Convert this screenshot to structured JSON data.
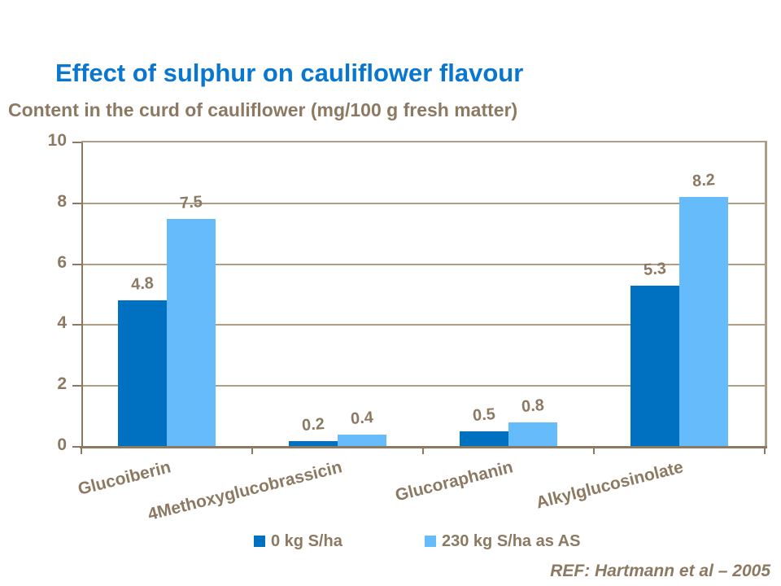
{
  "colors": {
    "title_blue": "#0976CF",
    "text_brown": "#8C7962",
    "grid_tan": "#AE9E86",
    "axis_brown": "#8C7962",
    "series1_dark_blue": "#0070C0",
    "series2_light_blue": "#66BBFA",
    "background": "#FFFFFF"
  },
  "footer": {
    "ref": "REF: Hartmann et al – 2005"
  },
  "chart_data": {
    "type": "bar",
    "title": "Effect of sulphur on cauliflower flavour",
    "subtitle": "Content in the curd of cauliflower (mg/100 g fresh matter)",
    "categories": [
      "Glucoiberin",
      "4Methoxyglucobrassicin",
      "Glucoraphanin",
      "Alkylglucosinolate"
    ],
    "series": [
      {
        "name": "0 kg S/ha",
        "color": "#0070C0",
        "values": [
          4.8,
          0.2,
          0.5,
          5.3
        ]
      },
      {
        "name": "230 kg S/ha as AS",
        "color": "#66BBFA",
        "values": [
          7.5,
          0.4,
          0.8,
          8.2
        ]
      }
    ],
    "value_labels": [
      "4.8",
      "7.5",
      "0.2",
      "0.4",
      "0.5",
      "0.8",
      "5.3",
      "8.2"
    ],
    "xlabel": "",
    "ylabel": "",
    "ylim": [
      0,
      10
    ],
    "yticks": [
      0,
      2,
      4,
      6,
      8,
      10
    ],
    "grid": true,
    "legend_position": "bottom",
    "x_label_rotation_deg": -14
  }
}
